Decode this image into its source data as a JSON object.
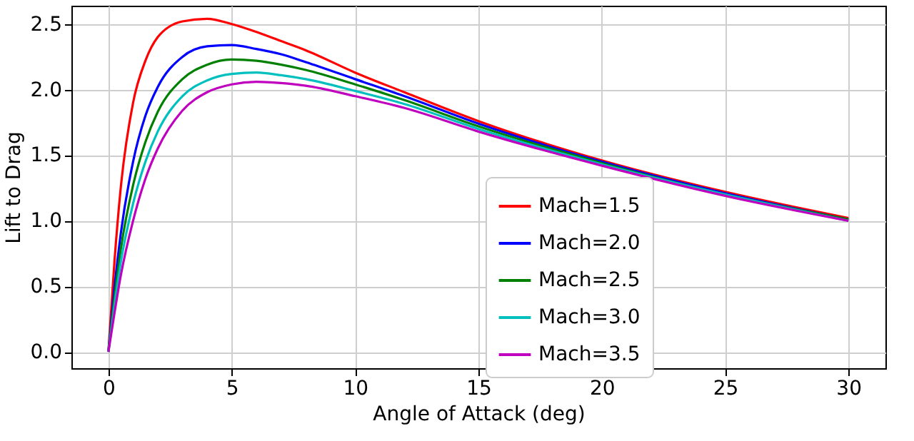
{
  "chart_data": {
    "type": "line",
    "xlabel": "Angle of Attack (deg)",
    "ylabel": "Lift to Drag",
    "x": [
      0,
      0.25,
      0.5,
      1,
      1.5,
      2,
      3,
      4,
      5,
      6,
      7,
      8,
      10,
      12,
      15,
      20,
      25,
      30
    ],
    "series": [
      {
        "name": "Mach=1.5",
        "color": "#ff0000",
        "values": [
          0,
          0.7,
          1.25,
          1.9,
          2.22,
          2.4,
          2.52,
          2.54,
          2.5,
          2.44,
          2.37,
          2.3,
          2.13,
          1.98,
          1.76,
          1.46,
          1.22,
          1.02
        ]
      },
      {
        "name": "Mach=2.0",
        "color": "#0000ff",
        "values": [
          0,
          0.5,
          0.9,
          1.45,
          1.8,
          2.02,
          2.25,
          2.33,
          2.34,
          2.31,
          2.27,
          2.21,
          2.08,
          1.95,
          1.74,
          1.45,
          1.21,
          1.01
        ]
      },
      {
        "name": "Mach=2.5",
        "color": "#008000",
        "values": [
          0,
          0.42,
          0.78,
          1.27,
          1.6,
          1.83,
          2.08,
          2.19,
          2.23,
          2.22,
          2.19,
          2.15,
          2.04,
          1.92,
          1.72,
          1.44,
          1.2,
          1.01
        ]
      },
      {
        "name": "Mach=3.0",
        "color": "#00bfbf",
        "values": [
          0,
          0.36,
          0.68,
          1.13,
          1.45,
          1.68,
          1.95,
          2.07,
          2.12,
          2.13,
          2.11,
          2.08,
          1.99,
          1.89,
          1.7,
          1.43,
          1.2,
          1.0
        ]
      },
      {
        "name": "Mach=3.5",
        "color": "#bf00bf",
        "values": [
          0,
          0.3,
          0.58,
          1.0,
          1.32,
          1.55,
          1.84,
          1.98,
          2.04,
          2.06,
          2.05,
          2.03,
          1.95,
          1.86,
          1.68,
          1.42,
          1.19,
          1.0
        ]
      }
    ],
    "xlim": [
      -1.5,
      31.5
    ],
    "xticks": [
      0,
      5,
      10,
      15,
      20,
      25,
      30
    ],
    "ylim": [
      -0.125,
      2.64
    ],
    "yticks": [
      {
        "value": 0,
        "label": "0.0"
      },
      0.5,
      {
        "value": 1,
        "label": "1.0"
      },
      1.5,
      {
        "value": 2,
        "label": "2.0"
      },
      2.5
    ],
    "grid": true,
    "legend": "bottom",
    "marker": "none",
    "line_style": "solid"
  }
}
